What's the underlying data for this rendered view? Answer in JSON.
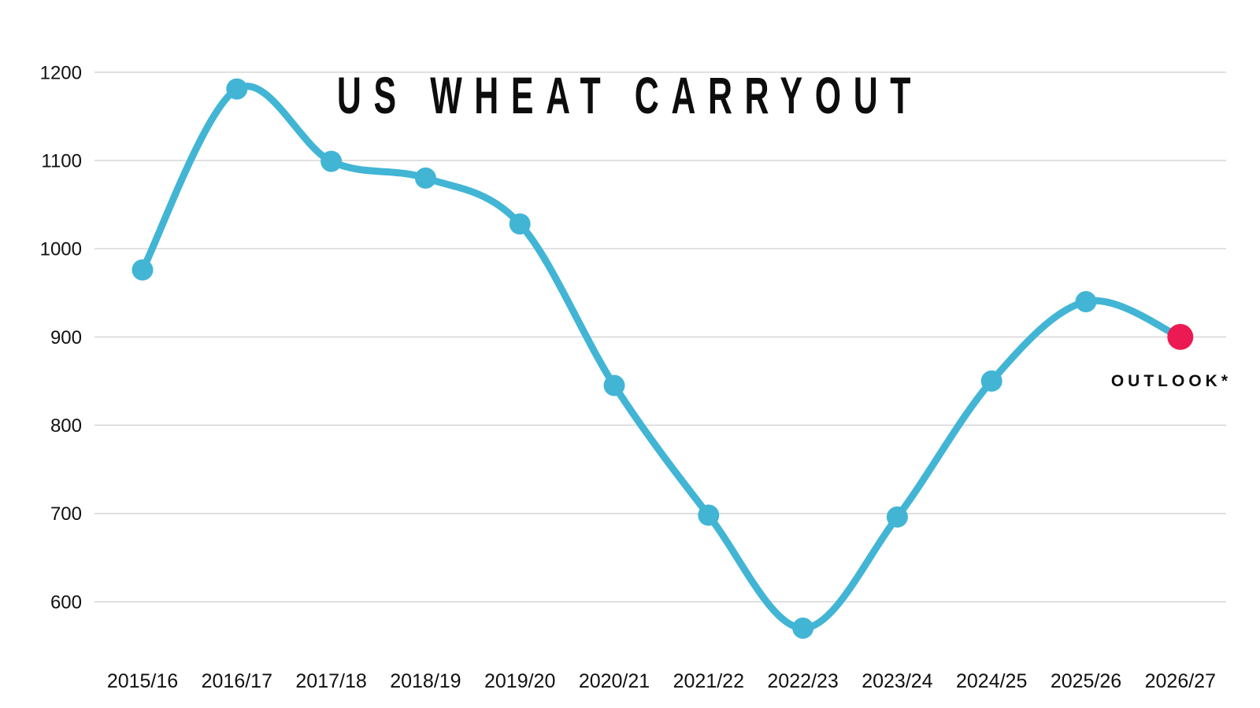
{
  "chart_data": {
    "type": "line",
    "title": "US WHEAT CARRYOUT",
    "xlabel": "",
    "ylabel": "",
    "categories": [
      "2015/16",
      "2016/17",
      "2017/18",
      "2018/19",
      "2019/20",
      "2020/21",
      "2021/22",
      "2022/23",
      "2023/24",
      "2024/25",
      "2025/26",
      "2026/27"
    ],
    "values": [
      976,
      1181,
      1099,
      1080,
      1028,
      845,
      698,
      570,
      696,
      850,
      940,
      900
    ],
    "outlook_index": 11,
    "annotation": "OUTLOOK*",
    "yticks": [
      600,
      700,
      800,
      900,
      1000,
      1100,
      1200
    ],
    "ylim": [
      550,
      1250
    ],
    "grid": true,
    "legend_position": "none",
    "colors": {
      "series": "#42B5D5",
      "outlook_point": "#EC1A52",
      "gridline": "#D6D6D6",
      "text": "#111111",
      "background": "#FFFFFF"
    }
  }
}
